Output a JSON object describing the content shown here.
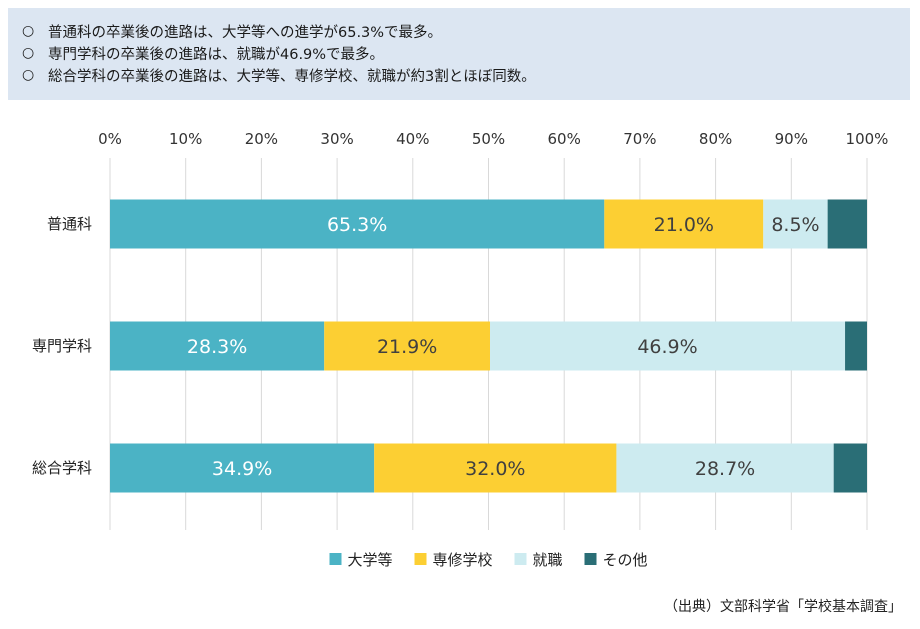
{
  "summary": {
    "bullet": "○",
    "lines": [
      "普通科の卒業後の進路は、大学等への進学が65.3%で最多。",
      "専門学科の卒業後の進路は、就職が46.9%で最多。",
      "総合学科の卒業後の進路は、大学等、専修学校、就職が約3割とほぼ同数。"
    ]
  },
  "source": "（出典）文部科学省「学校基本調査」",
  "chart_data": {
    "type": "bar",
    "orientation": "horizontal",
    "stacked": true,
    "percent": true,
    "xlim": [
      0,
      100
    ],
    "x_ticks": [
      "0%",
      "10%",
      "20%",
      "30%",
      "40%",
      "50%",
      "60%",
      "70%",
      "80%",
      "90%",
      "100%"
    ],
    "grid": true,
    "legend_position": "bottom",
    "categories": [
      "普通科",
      "専門学科",
      "総合学科"
    ],
    "series": [
      {
        "name": "大学等",
        "color": "#4bb3c5",
        "values": [
          65.3,
          28.3,
          34.9
        ],
        "labels": [
          "65.3%",
          "28.3%",
          "34.9%"
        ],
        "label_color": "#ffffff"
      },
      {
        "name": "専修学校",
        "color": "#fccf33",
        "values": [
          21.0,
          21.9,
          32.0
        ],
        "labels": [
          "21.0%",
          "21.9%",
          "32.0%"
        ],
        "label_color": "#404040"
      },
      {
        "name": "就職",
        "color": "#cdebf0",
        "values": [
          8.5,
          46.9,
          28.7
        ],
        "labels": [
          "8.5%",
          "46.9%",
          "28.7%"
        ],
        "label_color": "#404040"
      },
      {
        "name": "その他",
        "color": "#2a6e76",
        "values": [
          5.2,
          2.9,
          4.4
        ],
        "labels": [
          "",
          "",
          ""
        ],
        "label_color": "#ffffff"
      }
    ]
  }
}
